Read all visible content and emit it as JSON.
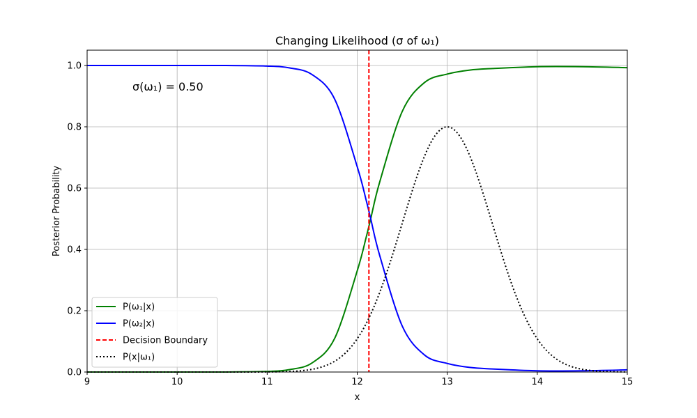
{
  "chart_data": {
    "type": "line",
    "title": "Changing Likelihood (σ of ω₁)",
    "xlabel": "x",
    "ylabel": "Posterior Probability",
    "xlim": [
      9,
      15
    ],
    "ylim": [
      0,
      1.05
    ],
    "xticks": [
      9,
      10,
      11,
      12,
      13,
      14,
      15
    ],
    "xtick_labels": [
      "9",
      "10",
      "11",
      "12",
      "13",
      "14",
      "15"
    ],
    "yticks": [
      0.0,
      0.2,
      0.4,
      0.6,
      0.8,
      1.0
    ],
    "ytick_labels": [
      "0.0",
      "0.2",
      "0.4",
      "0.6",
      "0.8",
      "1.0"
    ],
    "grid": true,
    "legend_position": "lower-left",
    "annotation": "σ(ω₁) = 0.50",
    "x": [
      9.0,
      9.5,
      10.0,
      10.5,
      11.0,
      11.25,
      11.5,
      11.75,
      12.0,
      12.1,
      12.15,
      12.25,
      12.5,
      12.75,
      13.0,
      13.25,
      13.5,
      14.0,
      14.5,
      15.0
    ],
    "series": [
      {
        "name": "P(ω₁|x)",
        "color": "#008000",
        "dash": "solid",
        "values": [
          0.0,
          0.0,
          0.0,
          0.0,
          0.002,
          0.008,
          0.03,
          0.11,
          0.33,
          0.44,
          0.5,
          0.62,
          0.85,
          0.945,
          0.972,
          0.985,
          0.99,
          0.996,
          0.996,
          0.993
        ]
      },
      {
        "name": "P(ω₂|x)",
        "color": "#0000ff",
        "dash": "solid",
        "values": [
          1.0,
          1.0,
          1.0,
          1.0,
          0.998,
          0.992,
          0.97,
          0.89,
          0.67,
          0.56,
          0.5,
          0.38,
          0.15,
          0.055,
          0.028,
          0.015,
          0.01,
          0.004,
          0.004,
          0.007
        ]
      },
      {
        "name": "Decision Boundary",
        "color": "#ff0000",
        "dash": "dashed",
        "vertical_x": 12.13
      },
      {
        "name": "P(x|ω₁)",
        "color": "#000000",
        "dash": "dotted",
        "gaussian": {
          "mean": 13.0,
          "sigma": 0.5,
          "peak": 0.8
        }
      }
    ]
  }
}
